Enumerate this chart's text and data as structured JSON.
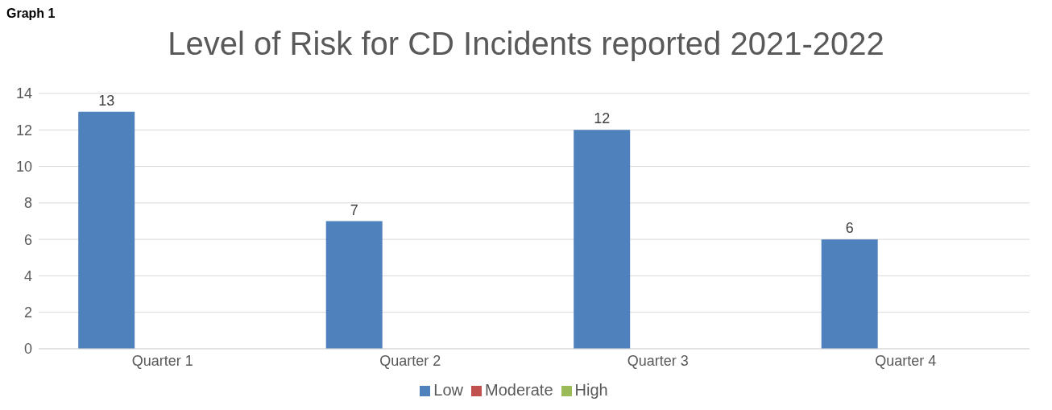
{
  "chart_data": {
    "type": "bar",
    "title": "Level of Risk for CD Incidents reported 2021-2022",
    "annotations": [
      "Graph 1"
    ],
    "categories": [
      "Quarter 1",
      "Quarter 2",
      "Quarter 3",
      "Quarter 4"
    ],
    "series": [
      {
        "name": "Low",
        "color": "#4f81bd",
        "values": [
          13,
          7,
          12,
          6
        ]
      },
      {
        "name": "Moderate",
        "color": "#c0504d",
        "values": [
          null,
          null,
          null,
          null
        ]
      },
      {
        "name": "High",
        "color": "#9bbb59",
        "values": [
          null,
          null,
          null,
          null
        ]
      }
    ],
    "ylim": [
      0,
      14
    ],
    "yticks": [
      0,
      2,
      4,
      6,
      8,
      10,
      12,
      14
    ],
    "grid": "y",
    "legend": "bottom",
    "data_labels": true
  }
}
